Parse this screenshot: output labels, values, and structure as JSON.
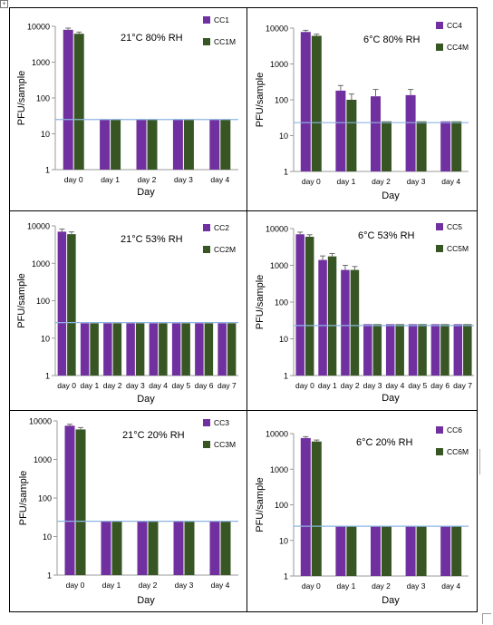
{
  "chart_data": [
    {
      "type": "bar",
      "title": "21°C 80% RH",
      "xlabel": "Day",
      "ylabel": "PFU/sample",
      "yscale": "log",
      "ylim": [
        1,
        10000
      ],
      "yticks": [
        "1",
        "10",
        "100",
        "1000",
        "10000"
      ],
      "categories": [
        "day 0",
        "day 1",
        "day 2",
        "day 3",
        "day 4"
      ],
      "series": [
        {
          "name": "CC1",
          "color": "#7030a0",
          "values": [
            8000,
            25,
            25,
            25,
            25
          ],
          "errors": [
            900,
            0,
            0,
            0,
            0
          ]
        },
        {
          "name": "CC1M",
          "color": "#375623",
          "values": [
            6200,
            25,
            25,
            25,
            25
          ],
          "errors": [
            700,
            0,
            0,
            0,
            0
          ]
        }
      ],
      "reference_line": 25
    },
    {
      "type": "bar",
      "title": "6°C 80% RH",
      "xlabel": "Day",
      "ylabel": "PFU/sample",
      "yscale": "log",
      "ylim": [
        1,
        10000
      ],
      "yticks": [
        "1",
        "10",
        "100",
        "1000",
        "10000"
      ],
      "categories": [
        "day 0",
        "day 1",
        "day 2",
        "day 3",
        "day 4"
      ],
      "series": [
        {
          "name": "CC4",
          "color": "#7030a0",
          "values": [
            7800,
            180,
            125,
            135,
            25
          ],
          "errors": [
            900,
            70,
            70,
            60,
            0
          ]
        },
        {
          "name": "CC4M",
          "color": "#375623",
          "values": [
            6100,
            100,
            25,
            25,
            25
          ],
          "errors": [
            700,
            45,
            0,
            0,
            0
          ]
        }
      ],
      "reference_line": 23
    },
    {
      "type": "bar",
      "title": "21°C 53% RH",
      "xlabel": "Day",
      "ylabel": "PFU/sample",
      "yscale": "log",
      "ylim": [
        1,
        10000
      ],
      "yticks": [
        "1",
        "10",
        "100",
        "1000",
        "10000"
      ],
      "categories": [
        "day 0",
        "day 1",
        "day 2",
        "day 3",
        "day 4",
        "day 5",
        "day 6",
        "day 7"
      ],
      "series": [
        {
          "name": "CC2",
          "color": "#7030a0",
          "values": [
            7000,
            25,
            25,
            25,
            25,
            25,
            25,
            25
          ],
          "errors": [
            1200,
            0,
            0,
            0,
            0,
            0,
            0,
            0
          ]
        },
        {
          "name": "CC2M",
          "color": "#375623",
          "values": [
            6000,
            25,
            25,
            25,
            25,
            25,
            25,
            25
          ],
          "errors": [
            900,
            0,
            0,
            0,
            0,
            0,
            0,
            0
          ]
        }
      ],
      "reference_line": 26
    },
    {
      "type": "bar",
      "title": "6°C 53% RH",
      "xlabel": "Day",
      "ylabel": "PFU/sample",
      "yscale": "log",
      "ylim": [
        1,
        10000
      ],
      "yticks": [
        "1",
        "10",
        "100",
        "1000",
        "10000"
      ],
      "categories": [
        "day 0",
        "day 1",
        "day 2",
        "day 3",
        "day 4",
        "day 5",
        "day 6",
        "day 7"
      ],
      "series": [
        {
          "name": "CC5",
          "color": "#7030a0",
          "values": [
            7000,
            1400,
            750,
            25,
            25,
            25,
            25,
            25
          ],
          "errors": [
            1000,
            400,
            250,
            0,
            0,
            0,
            0,
            0
          ]
        },
        {
          "name": "CC5M",
          "color": "#375623",
          "values": [
            6000,
            1750,
            750,
            25,
            25,
            25,
            25,
            25
          ],
          "errors": [
            800,
            350,
            180,
            0,
            0,
            0,
            0,
            0
          ]
        }
      ],
      "reference_line": 23
    },
    {
      "type": "bar",
      "title": "21°C 20% RH",
      "xlabel": "Day",
      "ylabel": "PFU/sample",
      "yscale": "log",
      "ylim": [
        1,
        10000
      ],
      "yticks": [
        "1",
        "10",
        "100",
        "1000",
        "10000"
      ],
      "categories": [
        "day 0",
        "day 1",
        "day 2",
        "day 3",
        "day 4"
      ],
      "series": [
        {
          "name": "CC3",
          "color": "#7030a0",
          "values": [
            7500,
            25,
            25,
            25,
            25
          ],
          "errors": [
            700,
            0,
            0,
            0,
            0
          ]
        },
        {
          "name": "CC3M",
          "color": "#375623",
          "values": [
            6000,
            25,
            25,
            25,
            25
          ],
          "errors": [
            700,
            0,
            0,
            0,
            0
          ]
        }
      ],
      "reference_line": 25
    },
    {
      "type": "bar",
      "title": "6°C 20% RH",
      "xlabel": "Day",
      "ylabel": "PFU/sample",
      "yscale": "log",
      "ylim": [
        1,
        10000
      ],
      "yticks": [
        "1",
        "10",
        "100",
        "1000",
        "10000"
      ],
      "categories": [
        "day 0",
        "day 1",
        "day 2",
        "day 3",
        "day 4"
      ],
      "series": [
        {
          "name": "CC6",
          "color": "#7030a0",
          "values": [
            7500,
            25,
            25,
            25,
            25
          ],
          "errors": [
            700,
            0,
            0,
            0,
            0
          ]
        },
        {
          "name": "CC6M",
          "color": "#375623",
          "values": [
            6000,
            25,
            25,
            25,
            25
          ],
          "errors": [
            600,
            0,
            0,
            0,
            0
          ]
        }
      ],
      "reference_line": 25
    }
  ],
  "colors": {
    "axis": "#9a9a9a",
    "errorbar": "#6b6b6b",
    "reference_line": "#8eb4e3",
    "border": "#000000"
  }
}
